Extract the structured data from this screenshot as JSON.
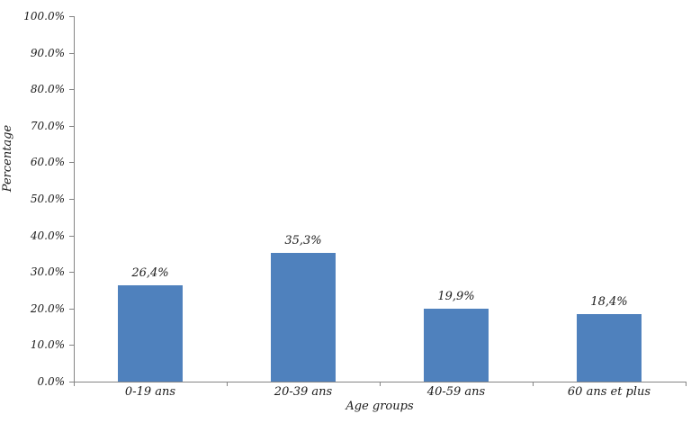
{
  "chart_data": {
    "type": "bar",
    "title": "",
    "categories": [
      "0-19 ans",
      "20-39 ans",
      "40-59 ans",
      "60 ans et plus"
    ],
    "values": [
      26.4,
      35.3,
      19.9,
      18.4
    ],
    "bar_labels": [
      "26,4%",
      "35,3%",
      "19,9%",
      "18,4%"
    ],
    "xlabel": "Age groups",
    "ylabel": "Percentage",
    "ylim": [
      0,
      100
    ],
    "ytick_step": 10,
    "ytick_labels": [
      "0.0%",
      "10.0%",
      "20.0%",
      "30.0%",
      "40.0%",
      "50.0%",
      "60.0%",
      "70.0%",
      "80.0%",
      "90.0%",
      "100.0%"
    ],
    "grid": false,
    "legend": null,
    "colors": {
      "bar": "#4F81BD",
      "axis": "#848484",
      "text": "#1a1a1a",
      "background": "#FFFFFF"
    }
  }
}
